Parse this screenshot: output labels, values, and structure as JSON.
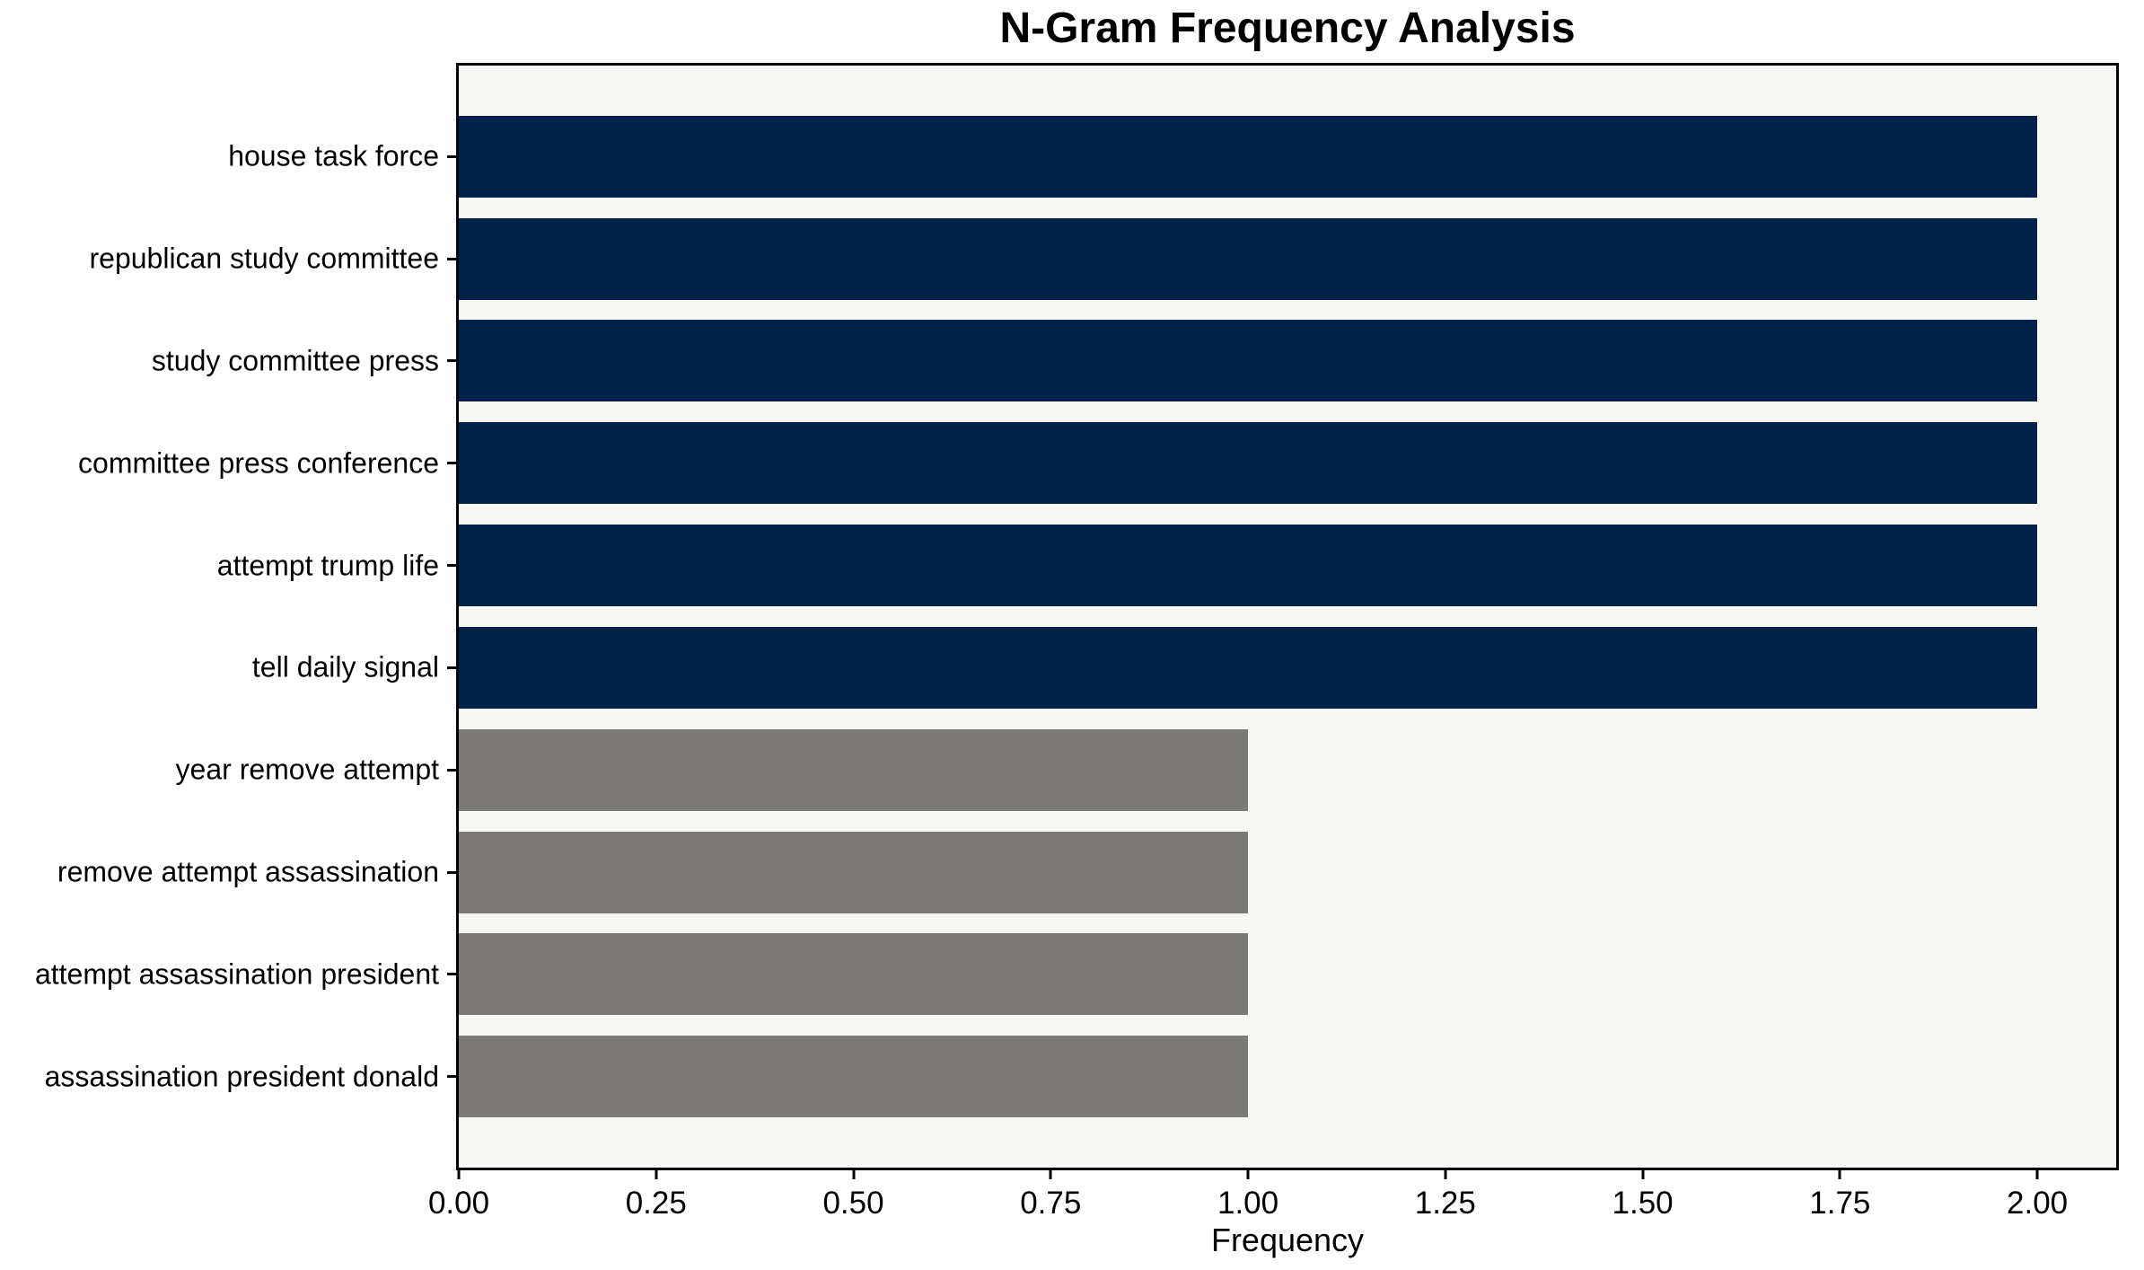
{
  "chart_data": {
    "type": "bar",
    "orientation": "horizontal",
    "title": "N-Gram Frequency Analysis",
    "xlabel": "Frequency",
    "ylabel": "",
    "categories": [
      "house task force",
      "republican study committee",
      "study committee press",
      "committee press conference",
      "attempt trump life",
      "tell daily signal",
      "year remove attempt",
      "remove attempt assassination",
      "attempt assassination president",
      "assassination president donald"
    ],
    "values": [
      2,
      2,
      2,
      2,
      2,
      2,
      1,
      1,
      1,
      1
    ],
    "bar_colors": [
      "#03224a",
      "#03224a",
      "#03224a",
      "#03224a",
      "#03224a",
      "#03224a",
      "#7b7a76",
      "#7b7a76",
      "#7b7a76",
      "#7b7a76"
    ],
    "xlim": [
      0,
      2.1
    ],
    "x_tick_values": [
      0,
      0.25,
      0.5,
      0.75,
      1.0,
      1.25,
      1.5,
      1.75,
      2.0
    ],
    "x_tick_labels": [
      "0.00",
      "0.25",
      "0.50",
      "0.75",
      "1.00",
      "1.25",
      "1.50",
      "1.75",
      "2.00"
    ],
    "grid": false,
    "legend": "none",
    "plot_background": "#f7f7f5",
    "figure_background": "#ffffff",
    "spine_color": "#000000"
  }
}
